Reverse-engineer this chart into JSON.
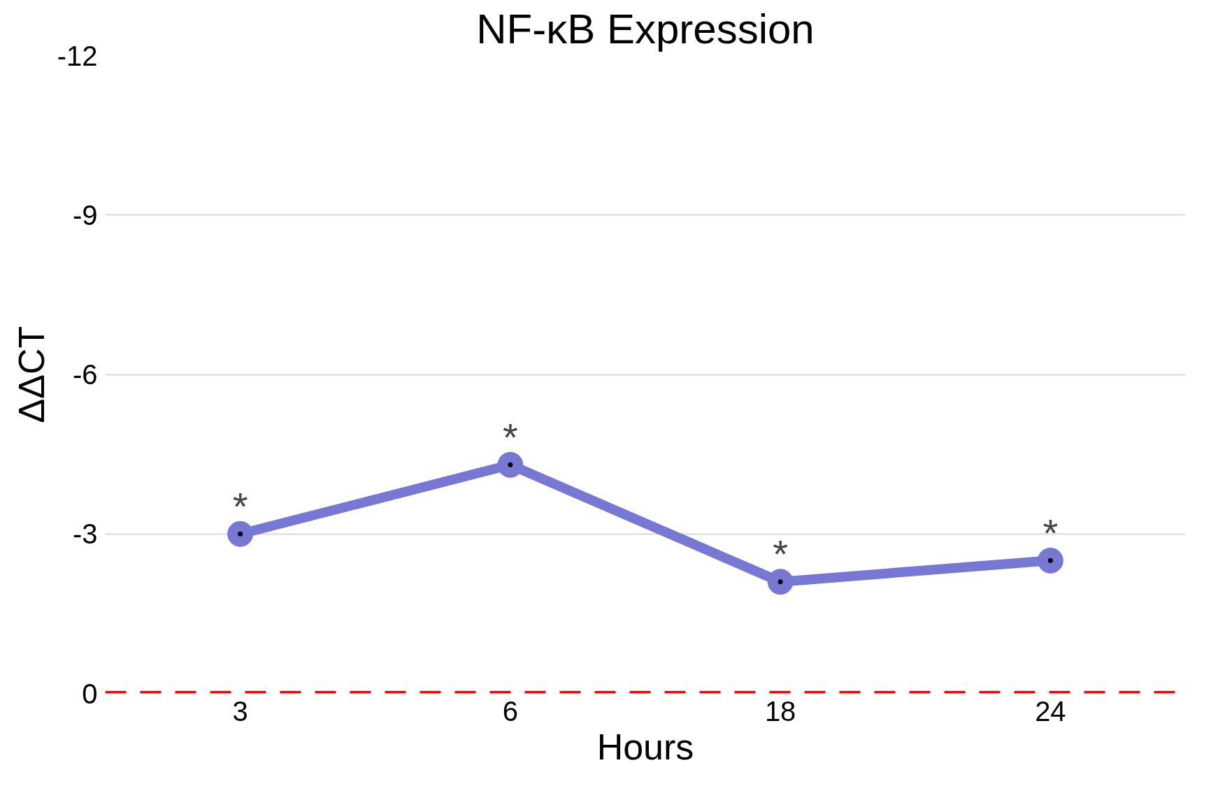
{
  "chart_data": {
    "type": "line",
    "title": "NF-κB Expression",
    "xlabel": "Hours",
    "ylabel": "ΔΔCT",
    "categories": [
      "3",
      "6",
      "18",
      "24"
    ],
    "series": [
      {
        "color": "#7777d4",
        "values": [
          -3.0,
          -4.3,
          -2.1,
          -2.5
        ]
      }
    ],
    "ylim": [
      0,
      -12
    ],
    "yticks": [
      0,
      -3,
      -6,
      -9,
      -12
    ],
    "grid": "y",
    "marker": "circle",
    "line_style": "solid",
    "ref_lines": [
      {
        "axis": "y",
        "value": 0,
        "color": "#ff0000",
        "line_style": "dashed"
      }
    ],
    "annotations": [
      {
        "text": "*",
        "x": "3",
        "y": -3.0
      },
      {
        "text": "*",
        "x": "6",
        "y": -4.3
      },
      {
        "text": "*",
        "x": "18",
        "y": -2.1
      },
      {
        "text": "*",
        "x": "24",
        "y": -2.5
      }
    ]
  }
}
